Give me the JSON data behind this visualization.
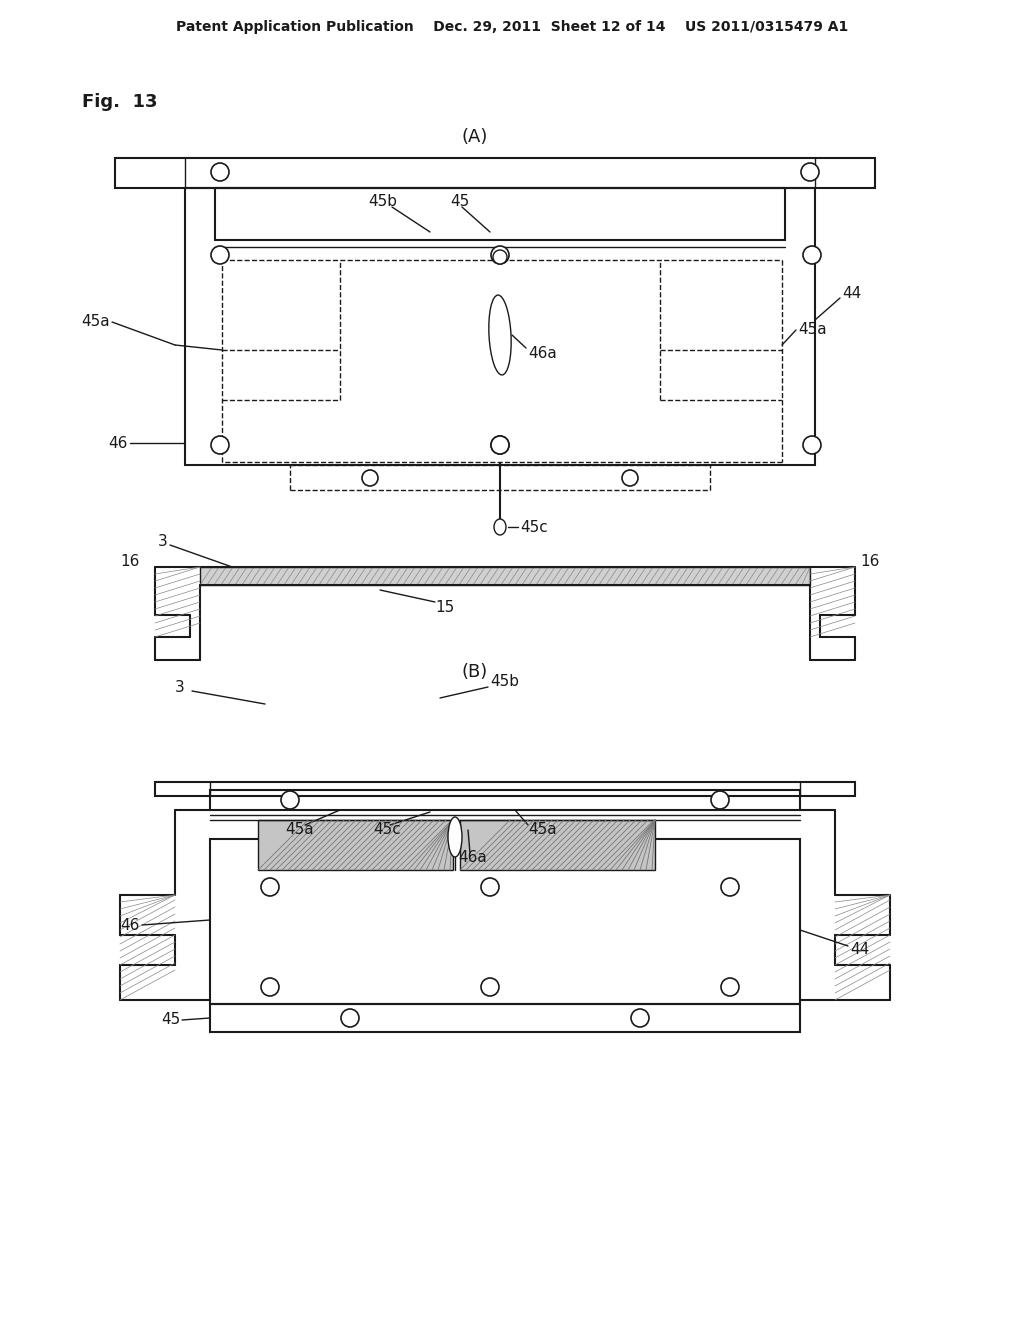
{
  "bg_color": "#ffffff",
  "lc": "#1a1a1a",
  "gray_fill": "#c8c8c8",
  "hatch_color": "#888888",
  "header": "Patent Application Publication    Dec. 29, 2011  Sheet 12 of 14    US 2011/0315479 A1",
  "fig_label": "Fig.  13",
  "lA": "(A)",
  "lB": "(B)"
}
